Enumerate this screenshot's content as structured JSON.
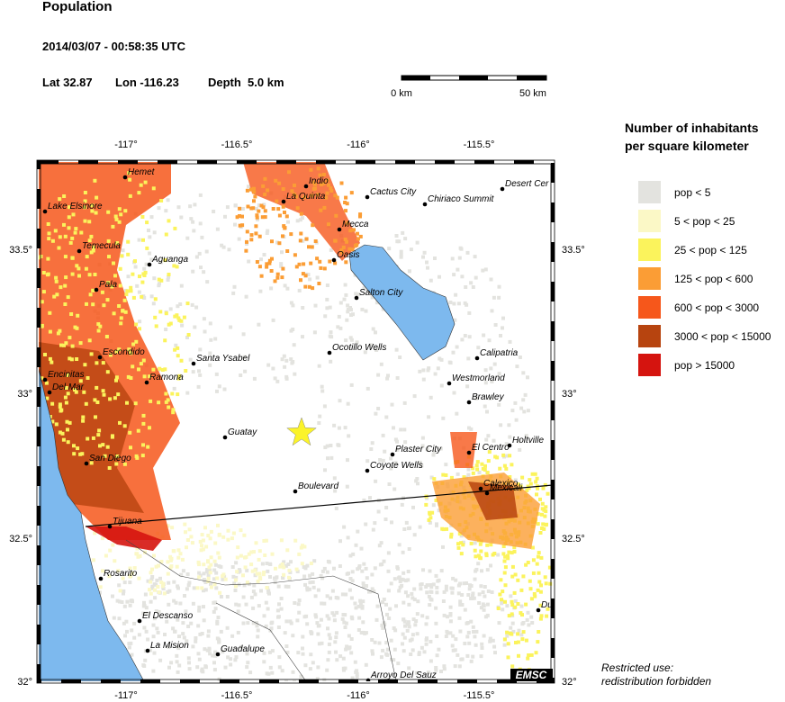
{
  "header": {
    "title": "Population",
    "datetime": "2014/03/07 - 00:58:35 UTC",
    "lat": "Lat 32.87",
    "lon": "Lon -116.23",
    "depth": "Depth  5.0 km"
  },
  "scale_bar": {
    "start": "0 km",
    "end": "50 km"
  },
  "map": {
    "lon_labels": [
      "-117°",
      "-116.5°",
      "-116°",
      "-115.5°"
    ],
    "lat_labels": [
      "33.5°",
      "33°",
      "32.5°",
      "32°"
    ],
    "cities": [
      "Hemet",
      "Indio",
      "La Quinta",
      "Cactus City",
      "Chiriaco Summit",
      "Desert Cer",
      "Lake Elsinore",
      "Mecca",
      "Oasis",
      "Temecula",
      "Aguanga",
      "Pala",
      "Salton City",
      "Ocotillo Wells",
      "Escondido",
      "Santa Ysabel",
      "Calipatria",
      "Ramona",
      "Encinitas",
      "Del Mar",
      "Westmorland",
      "Brawley",
      "Guatay",
      "Plaster City",
      "Holtville",
      "El Centro",
      "San Diego",
      "Coyote Wells",
      "Calexico",
      "Mexicali",
      "Boulevard",
      "Tijuana",
      "Rosarito",
      "El Descanso",
      "La Mision",
      "Guadalupe",
      "Arroyo Del Sauz",
      "Du"
    ],
    "logo": "EMSC"
  },
  "legend": {
    "title": [
      "Number of inhabitants",
      "per square kilometer"
    ],
    "items": [
      {
        "label": "pop < 5",
        "color": "#e3e3df"
      },
      {
        "label": "5 < pop < 25",
        "color": "#fbf8c6"
      },
      {
        "label": "25 < pop < 125",
        "color": "#fbf35c"
      },
      {
        "label": "125 < pop < 600",
        "color": "#fb9d35"
      },
      {
        "label": "600 < pop < 3000",
        "color": "#f6571b"
      },
      {
        "label": "3000 < pop < 15000",
        "color": "#b7440f"
      },
      {
        "label": "pop > 15000",
        "color": "#d5140f"
      }
    ]
  },
  "footer": [
    "Restricted use:",
    "redistribution forbidden"
  ]
}
